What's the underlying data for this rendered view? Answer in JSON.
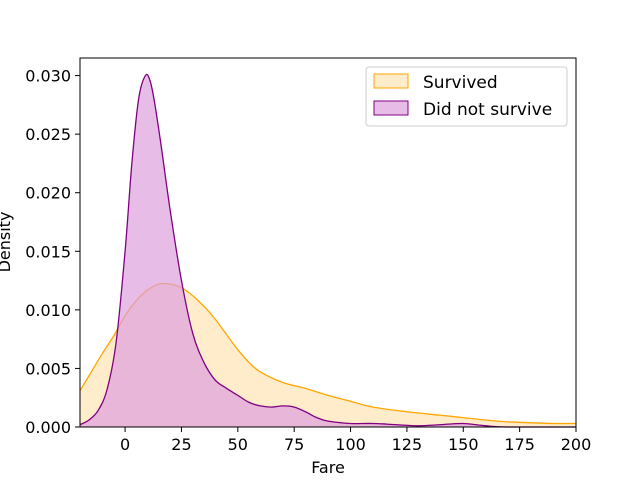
{
  "chart_data": {
    "type": "area",
    "title": "",
    "xlabel": "Fare",
    "ylabel": "Density",
    "xlim": [
      -20,
      200
    ],
    "ylim": [
      0,
      0.0315
    ],
    "xticks": [
      0,
      25,
      50,
      75,
      100,
      125,
      150,
      175,
      200
    ],
    "yticks": [
      0.0,
      0.005,
      0.01,
      0.015,
      0.02,
      0.025,
      0.03
    ],
    "ytick_labels": [
      "0.000",
      "0.005",
      "0.010",
      "0.015",
      "0.020",
      "0.025",
      "0.030"
    ],
    "grid": false,
    "legend_position": "top-right",
    "series": [
      {
        "name": "Survived",
        "color": "#FFA500",
        "fill": "#FFE4B5",
        "x": [
          -20,
          -15,
          -10,
          -5,
          0,
          5,
          10,
          15,
          20,
          25,
          30,
          35,
          40,
          45,
          50,
          55,
          60,
          70,
          80,
          90,
          100,
          110,
          125,
          140,
          150,
          165,
          175,
          190,
          200
        ],
        "y": [
          0.0031,
          0.0047,
          0.0063,
          0.0078,
          0.0095,
          0.0108,
          0.0117,
          0.0122,
          0.0122,
          0.0119,
          0.0112,
          0.0103,
          0.0092,
          0.0079,
          0.0066,
          0.0055,
          0.0047,
          0.0038,
          0.0033,
          0.0027,
          0.0022,
          0.0017,
          0.0013,
          0.001,
          0.0008,
          0.0005,
          0.0004,
          0.0003,
          0.0003
        ]
      },
      {
        "name": "Did not survive",
        "color": "#800080",
        "fill": "#DDA0DD",
        "x": [
          -20,
          -16,
          -12,
          -8,
          -4,
          0,
          3,
          6,
          9,
          11,
          13,
          16,
          20,
          25,
          30,
          35,
          40,
          45,
          50,
          55,
          60,
          65,
          70,
          75,
          80,
          85,
          90,
          100,
          110,
          120,
          130,
          140,
          150,
          160,
          170,
          200
        ],
        "y": [
          0.0002,
          0.0006,
          0.0014,
          0.0032,
          0.0072,
          0.015,
          0.0225,
          0.028,
          0.03,
          0.0296,
          0.0278,
          0.024,
          0.0185,
          0.0125,
          0.008,
          0.0055,
          0.004,
          0.0033,
          0.0027,
          0.0021,
          0.0018,
          0.0017,
          0.0018,
          0.0017,
          0.0013,
          0.0008,
          0.0005,
          0.0003,
          0.0003,
          0.0002,
          0.0001,
          0.0002,
          0.0003,
          0.0001,
          0.0,
          0.0
        ]
      }
    ]
  }
}
